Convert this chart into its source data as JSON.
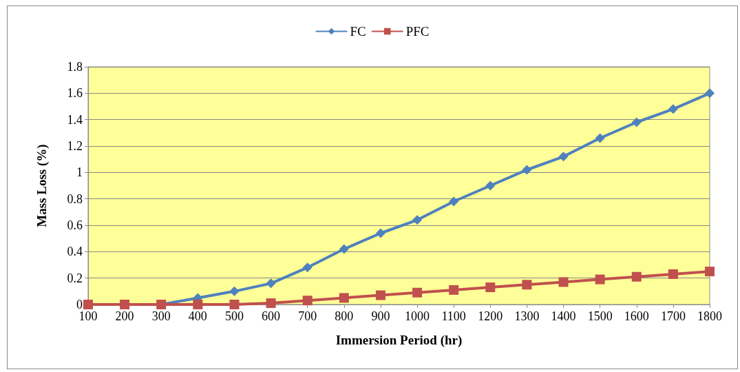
{
  "chart_data": {
    "type": "line",
    "xlabel": "Immersion Period (hr)",
    "ylabel": "Mass Loss (%)",
    "categories": [
      "100",
      "200",
      "300",
      "400",
      "500",
      "600",
      "700",
      "800",
      "900",
      "1000",
      "1100",
      "1200",
      "1300",
      "1400",
      "1500",
      "1600",
      "1700",
      "1800"
    ],
    "series": [
      {
        "name": "FC",
        "color": "#4f81bd",
        "marker": "diamond",
        "values": [
          0,
          0,
          0,
          0.05,
          0.1,
          0.16,
          0.28,
          0.42,
          0.54,
          0.64,
          0.78,
          0.9,
          1.02,
          1.12,
          1.26,
          1.38,
          1.48,
          1.6
        ]
      },
      {
        "name": "PFC",
        "color": "#c0504d",
        "marker": "square",
        "values": [
          0,
          0,
          0,
          0,
          0,
          0.01,
          0.03,
          0.05,
          0.07,
          0.09,
          0.11,
          0.13,
          0.15,
          0.17,
          0.19,
          0.21,
          0.23,
          0.25
        ]
      }
    ],
    "ylim": [
      0,
      1.8
    ],
    "yticks": [
      0,
      0.2,
      0.4,
      0.6,
      0.8,
      1,
      1.2,
      1.4,
      1.6,
      1.8
    ],
    "grid": "y",
    "legend": "top",
    "line_style": "solid"
  }
}
